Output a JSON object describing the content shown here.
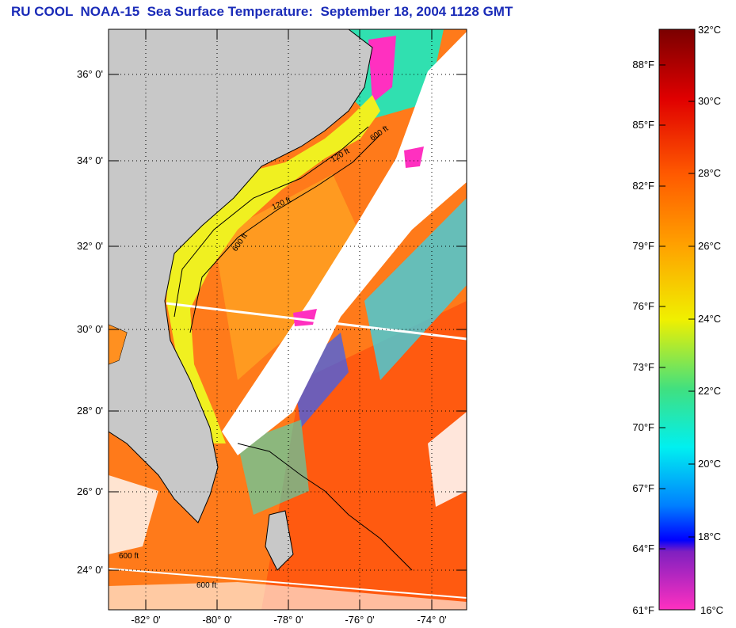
{
  "title": "RU COOL  NOAA-15  Sea Surface Temperature:  September 18, 2004 1128 GMT",
  "map": {
    "lat_labels": [
      "36° 0'",
      "34° 0'",
      "32° 0'",
      "30° 0'",
      "28° 0'",
      "26° 0'",
      "24° 0'"
    ],
    "lon_labels": [
      "-82° 0'",
      "-80° 0'",
      "-78° 0'",
      "-76° 0'",
      "-74° 0'"
    ],
    "contour_labels": [
      "120 ft",
      "600 ft",
      "120 ft",
      "600 ft",
      "600 ft",
      "600 ft"
    ],
    "colors": {
      "land": "#c8c8c8",
      "cloud": "#ffffff",
      "coast": "#000000"
    }
  },
  "colorbar": {
    "celsius": [
      "32°C",
      "30°C",
      "28°C",
      "26°C",
      "24°C",
      "22°C",
      "20°C",
      "18°C",
      "16°C"
    ],
    "fahrenheit": [
      "88°F",
      "85°F",
      "82°F",
      "79°F",
      "76°F",
      "73°F",
      "70°F",
      "67°F",
      "64°F",
      "61°F"
    ]
  }
}
